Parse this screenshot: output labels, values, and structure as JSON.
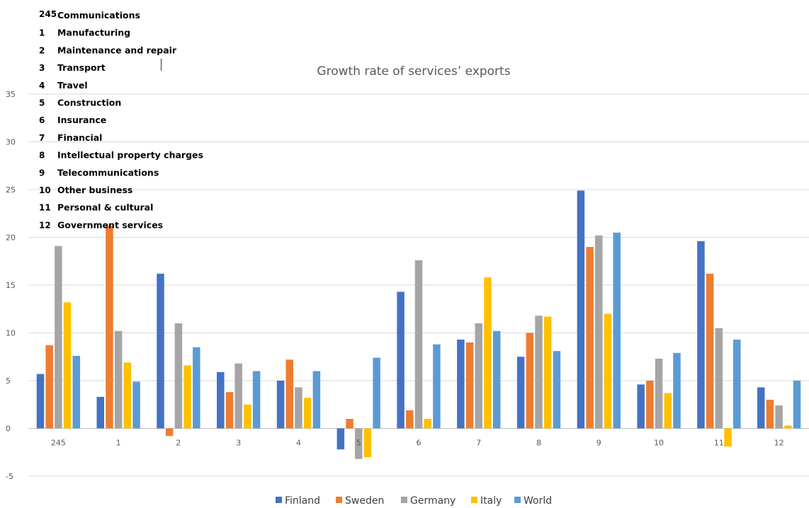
{
  "chart_data": {
    "type": "bar",
    "title": "Growth rate of services’ exports",
    "xlabel": "",
    "ylabel": "",
    "ylim": [
      -5,
      35
    ],
    "yticks": [
      -5,
      0,
      5,
      10,
      15,
      20,
      25,
      30,
      35
    ],
    "grid": true,
    "legend_position": "bottom",
    "categories": [
      "245",
      "1",
      "2",
      "3",
      "4",
      "5",
      "6",
      "7",
      "8",
      "9",
      "10",
      "11",
      "12"
    ],
    "series": [
      {
        "name": "Finland",
        "color": "#4472C4",
        "values": [
          5.7,
          3.3,
          16.2,
          5.9,
          5.0,
          -2.2,
          14.3,
          9.3,
          7.5,
          24.9,
          4.6,
          19.6,
          4.3
        ]
      },
      {
        "name": "Sweden",
        "color": "#ED7D31",
        "values": [
          8.7,
          21.2,
          -0.8,
          3.8,
          7.2,
          1.0,
          1.9,
          9.0,
          10.0,
          19.0,
          5.0,
          16.2,
          3.0
        ]
      },
      {
        "name": "Germany",
        "color": "#A5A5A5",
        "values": [
          19.1,
          10.2,
          11.0,
          6.8,
          4.3,
          -3.2,
          17.6,
          11.0,
          11.8,
          20.2,
          7.3,
          10.5,
          2.4
        ]
      },
      {
        "name": "Italy",
        "color": "#FFC000",
        "values": [
          13.2,
          6.9,
          6.6,
          2.5,
          3.2,
          -3.0,
          1.0,
          15.8,
          11.7,
          12.0,
          3.7,
          -1.9,
          0.3
        ]
      },
      {
        "name": "World",
        "color": "#5B9BD5",
        "values": [
          7.6,
          4.9,
          8.5,
          6.0,
          6.0,
          7.4,
          8.8,
          10.2,
          8.1,
          20.5,
          7.9,
          9.3,
          5.0
        ]
      }
    ],
    "category_key": [
      {
        "code": "245",
        "name": "Communications"
      },
      {
        "code": "1",
        "name": "Manufacturing"
      },
      {
        "code": "2",
        "name": "Maintenance and repair"
      },
      {
        "code": "3",
        "name": "Transport"
      },
      {
        "code": "4",
        "name": "Travel"
      },
      {
        "code": "5",
        "name": "Construction"
      },
      {
        "code": "6",
        "name": "Insurance"
      },
      {
        "code": "7",
        "name": "Financial"
      },
      {
        "code": "8",
        "name": "Intellectual property charges"
      },
      {
        "code": "9",
        "name": "Telecommunications"
      },
      {
        "code": "10",
        "name": "Other business"
      },
      {
        "code": "11",
        "name": "Personal & cultural"
      },
      {
        "code": "12",
        "name": "Government services"
      }
    ]
  }
}
